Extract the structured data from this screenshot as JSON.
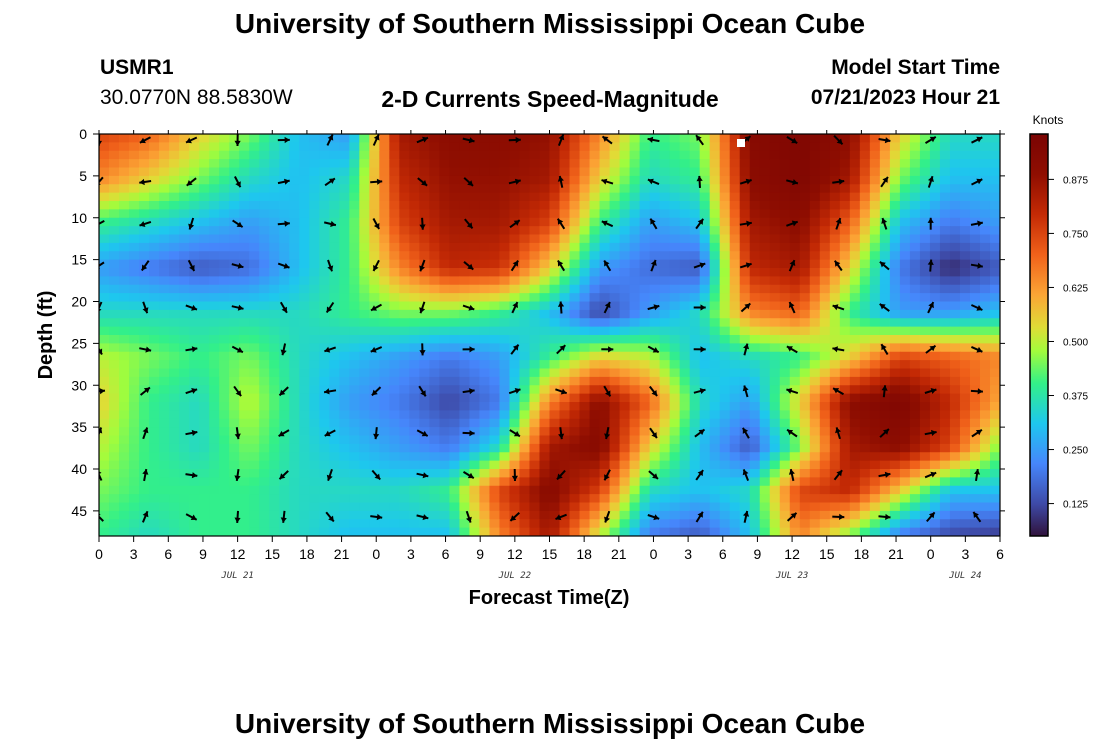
{
  "header": {
    "title": "University of Southern Mississippi Ocean Cube",
    "station": "USMR1",
    "coords": "30.0770N  88.5830W",
    "subtitle": "2-D Currents Speed-Magnitude",
    "model_label": "Model Start Time",
    "model_time": "07/21/2023 Hour 21"
  },
  "footer": {
    "title": "University of Southern Mississippi Ocean Cube"
  },
  "chart_data": {
    "type": "heatmap",
    "title": "2-D Currents Speed-Magnitude",
    "xlabel": "Forecast Time(Z)",
    "ylabel": "Depth (ft)",
    "x_hours_start": 0,
    "x_hours_end": 78,
    "x_tick_labels": [
      "0",
      "3",
      "6",
      "9",
      "12",
      "15",
      "18",
      "21",
      "0",
      "3",
      "6",
      "9",
      "12",
      "15",
      "18",
      "21",
      "0",
      "3",
      "6",
      "9",
      "12",
      "15",
      "18",
      "21",
      "0",
      "3",
      "6"
    ],
    "date_labels": [
      {
        "label": "JUL 21",
        "hour": 12
      },
      {
        "label": "JUL 22",
        "hour": 36
      },
      {
        "label": "JUL 23",
        "hour": 60
      },
      {
        "label": "JUL 24",
        "hour": 75
      }
    ],
    "y_ticks": [
      0,
      5,
      10,
      15,
      20,
      25,
      30,
      35,
      40,
      45
    ],
    "ylim": [
      0,
      48
    ],
    "colorbar": {
      "title": "Knots",
      "ticks": [
        "0.125",
        "0.250",
        "0.375",
        "0.500",
        "0.625",
        "0.750",
        "0.875"
      ],
      "range": [
        0.05,
        0.98
      ]
    },
    "speed_knots": [
      [
        0.75,
        0.7,
        0.55,
        0.45,
        0.3,
        0.25,
        0.85,
        0.9,
        0.9,
        0.88,
        0.65,
        0.4,
        0.45,
        0.92,
        0.95,
        0.9,
        0.55,
        0.35,
        0.35
      ],
      [
        0.65,
        0.55,
        0.45,
        0.35,
        0.3,
        0.35,
        0.8,
        0.88,
        0.88,
        0.85,
        0.55,
        0.35,
        0.4,
        0.9,
        0.95,
        0.85,
        0.45,
        0.3,
        0.3
      ],
      [
        0.4,
        0.35,
        0.3,
        0.25,
        0.3,
        0.4,
        0.75,
        0.85,
        0.85,
        0.75,
        0.4,
        0.25,
        0.3,
        0.85,
        0.9,
        0.7,
        0.3,
        0.2,
        0.25
      ],
      [
        0.25,
        0.2,
        0.15,
        0.18,
        0.3,
        0.4,
        0.65,
        0.8,
        0.78,
        0.55,
        0.25,
        0.18,
        0.15,
        0.8,
        0.85,
        0.55,
        0.2,
        0.08,
        0.15
      ],
      [
        0.35,
        0.35,
        0.35,
        0.35,
        0.35,
        0.4,
        0.45,
        0.45,
        0.4,
        0.3,
        0.12,
        0.25,
        0.35,
        0.65,
        0.7,
        0.4,
        0.25,
        0.25,
        0.3
      ],
      [
        0.5,
        0.45,
        0.4,
        0.45,
        0.35,
        0.3,
        0.25,
        0.2,
        0.25,
        0.4,
        0.55,
        0.5,
        0.3,
        0.35,
        0.4,
        0.55,
        0.75,
        0.7,
        0.65
      ],
      [
        0.55,
        0.4,
        0.35,
        0.5,
        0.35,
        0.25,
        0.2,
        0.12,
        0.2,
        0.65,
        0.9,
        0.7,
        0.35,
        0.25,
        0.55,
        0.9,
        0.95,
        0.8,
        0.6
      ],
      [
        0.5,
        0.4,
        0.35,
        0.45,
        0.35,
        0.3,
        0.25,
        0.2,
        0.35,
        0.85,
        0.92,
        0.55,
        0.3,
        0.15,
        0.45,
        0.85,
        0.9,
        0.75,
        0.45
      ],
      [
        0.45,
        0.4,
        0.4,
        0.4,
        0.35,
        0.35,
        0.35,
        0.4,
        0.75,
        0.92,
        0.75,
        0.35,
        0.3,
        0.35,
        0.75,
        0.8,
        0.55,
        0.3,
        0.3
      ],
      [
        0.4,
        0.35,
        0.4,
        0.4,
        0.35,
        0.3,
        0.3,
        0.3,
        0.65,
        0.85,
        0.5,
        0.2,
        0.15,
        0.3,
        0.65,
        0.45,
        0.2,
        0.12,
        0.1
      ]
    ]
  }
}
